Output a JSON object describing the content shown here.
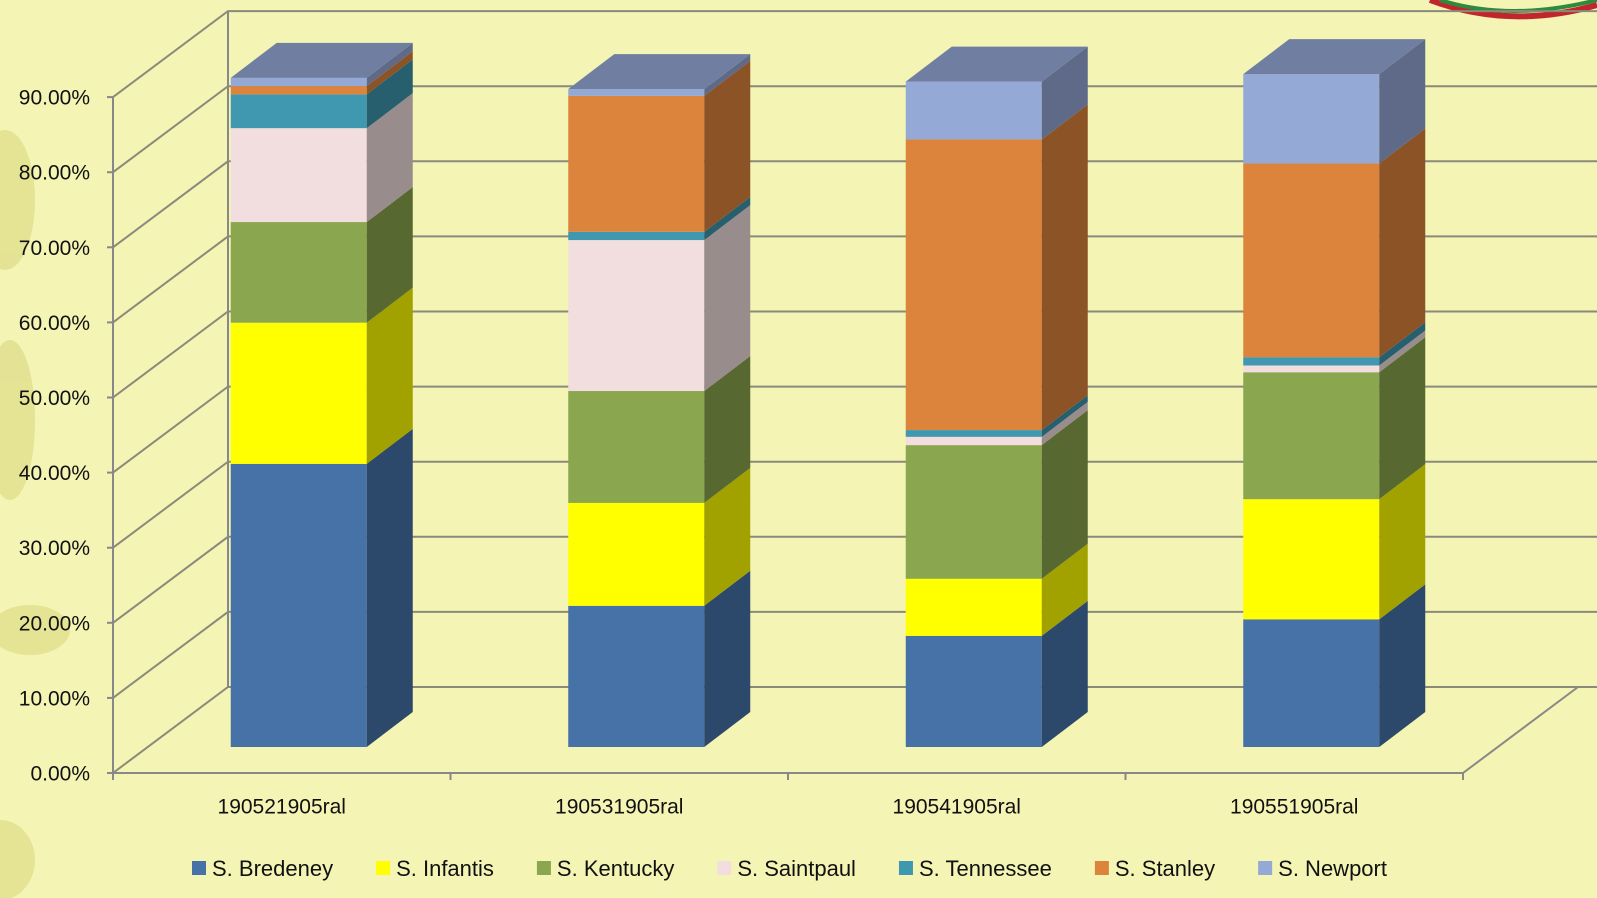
{
  "chart_data": {
    "type": "bar3d-stacked",
    "categories": [
      "190521905ral",
      "190531905ral",
      "190541905ral",
      "190551905ral"
    ],
    "series": [
      {
        "name": "S. Bredeney",
        "color": "#4672a8",
        "values": [
          37.7,
          18.8,
          14.8,
          17.0
        ]
      },
      {
        "name": "S. Infantis",
        "color": "#ffff00",
        "values": [
          18.8,
          13.7,
          7.6,
          16.0
        ]
      },
      {
        "name": "S. Kentucky",
        "color": "#8aa64e",
        "values": [
          13.4,
          14.9,
          17.8,
          16.9
        ]
      },
      {
        "name": "S. Saintpaul",
        "color": "#f2dede",
        "values": [
          12.5,
          20.1,
          1.1,
          0.9
        ]
      },
      {
        "name": "S. Tennessee",
        "color": "#3f97b0",
        "values": [
          4.5,
          1.1,
          0.9,
          1.1
        ]
      },
      {
        "name": "S. Stanley",
        "color": "#dc843c",
        "values": [
          1.1,
          18.1,
          38.7,
          25.8
        ]
      },
      {
        "name": "S. Newport",
        "color": "#95a9d6",
        "values": [
          1.1,
          0.9,
          7.7,
          11.9
        ]
      }
    ],
    "ylim": [
      0,
      90
    ],
    "yticks": [
      {
        "value": 0,
        "label": "0.00%"
      },
      {
        "value": 10,
        "label": "10.00%"
      },
      {
        "value": 20,
        "label": "20.00%"
      },
      {
        "value": 30,
        "label": "30.00%"
      },
      {
        "value": 40,
        "label": "40.00%"
      },
      {
        "value": 50,
        "label": "50.00%"
      },
      {
        "value": 60,
        "label": "60.00%"
      },
      {
        "value": 70,
        "label": "70.00%"
      },
      {
        "value": 80,
        "label": "80.00%"
      },
      {
        "value": 90,
        "label": "90.00%"
      }
    ],
    "grid": true
  }
}
